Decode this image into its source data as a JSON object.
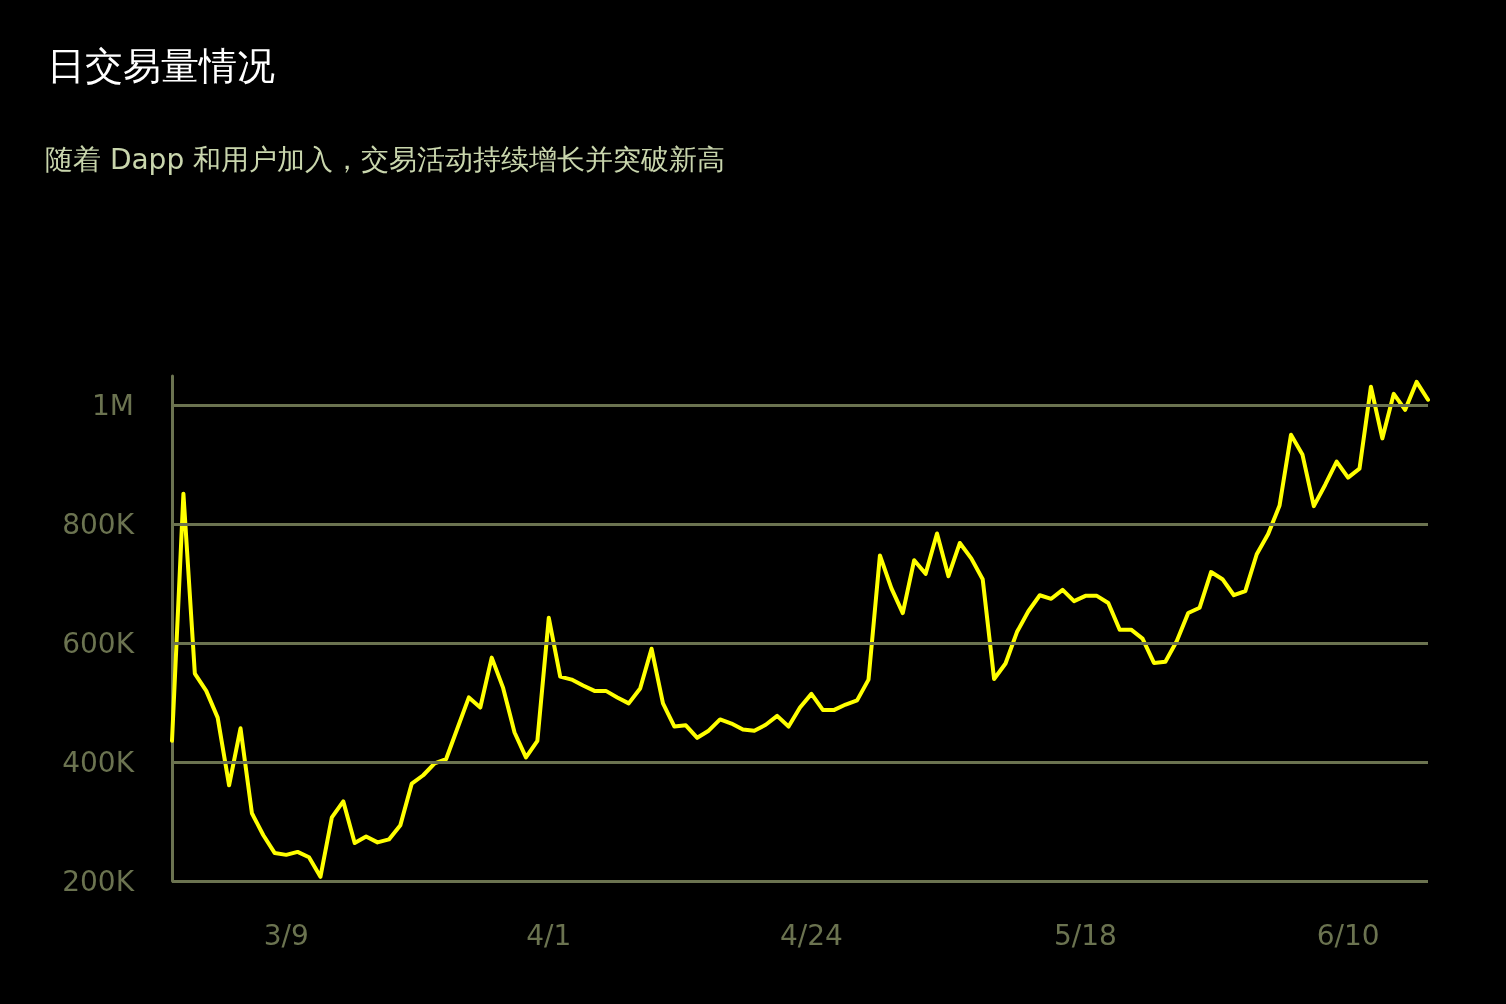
{
  "chart_data": {
    "type": "line",
    "title": "日交易量情况",
    "subtitle": "随着 Dapp 和用户加入，交易活动持续增长并突破新高",
    "x": [
      "--02-28",
      "--02-29",
      "--03-01",
      "--03-02",
      "--03-03",
      "--03-04",
      "--03-05",
      "--03-06",
      "--03-07",
      "--03-08",
      "--03-09",
      "--03-10",
      "--03-11",
      "--03-12",
      "--03-13",
      "--03-14",
      "--03-15",
      "--03-16",
      "--03-17",
      "--03-18",
      "--03-19",
      "--03-20",
      "--03-21",
      "--03-22",
      "--03-23",
      "--03-24",
      "--03-25",
      "--03-26",
      "--03-27",
      "--03-28",
      "--03-29",
      "--03-30",
      "--03-31",
      "--04-01",
      "--04-02",
      "--04-03",
      "--04-04",
      "--04-05",
      "--04-06",
      "--04-07",
      "--04-08",
      "--04-09",
      "--04-10",
      "--04-11",
      "--04-12",
      "--04-13",
      "--04-14",
      "--04-15",
      "--04-16",
      "--04-17",
      "--04-18",
      "--04-19",
      "--04-20",
      "--04-21",
      "--04-22",
      "--04-23",
      "--04-24",
      "--04-25",
      "--04-26",
      "--04-27",
      "--04-28",
      "--04-29",
      "--04-30",
      "--05-01",
      "--05-02",
      "--05-03",
      "--05-04",
      "--05-05",
      "--05-06",
      "--05-07",
      "--05-08",
      "--05-09",
      "--05-10",
      "--05-11",
      "--05-12",
      "--05-13",
      "--05-14",
      "--05-15",
      "--05-16",
      "--05-17",
      "--05-18",
      "--05-19",
      "--05-20",
      "--05-21",
      "--05-22",
      "--05-23",
      "--05-24",
      "--05-25",
      "--05-26",
      "--05-27",
      "--05-28",
      "--05-29",
      "--05-30",
      "--05-31",
      "--06-01",
      "--06-02",
      "--06-03",
      "--06-04",
      "--06-05",
      "--06-06",
      "--06-07",
      "--06-08",
      "--06-09",
      "--06-10",
      "--06-11",
      "--06-12",
      "--06-13",
      "--06-14",
      "--06-15",
      "--06-16",
      "--06-17"
    ],
    "series": [
      {
        "color": "#ffff00",
        "values": [
          436000,
          852000,
          549000,
          520000,
          475000,
          361000,
          457000,
          314000,
          277000,
          247000,
          244000,
          249000,
          240000,
          207000,
          307000,
          334000,
          264000,
          275000,
          265000,
          270000,
          294000,
          364000,
          378000,
          398000,
          405000,
          457000,
          509000,
          492000,
          576000,
          525000,
          450000,
          408000,
          436000,
          643000,
          544000,
          539000,
          529000,
          520000,
          520000,
          509000,
          499000,
          524000,
          591000,
          499000,
          460000,
          462000,
          441000,
          453000,
          472000,
          465000,
          455000,
          453000,
          463000,
          478000,
          460000,
          492000,
          515000,
          488000,
          488000,
          497000,
          504000,
          539000,
          748000,
          693000,
          651000,
          740000,
          717000,
          785000,
          713000,
          769000,
          743000,
          708000,
          540000,
          566000,
          619000,
          654000,
          681000,
          675000,
          690000,
          671000,
          680000,
          680000,
          668000,
          623000,
          623000,
          608000,
          567000,
          569000,
          604000,
          651000,
          660000,
          720000,
          708000,
          681000,
          688000,
          750000,
          784000,
          832000,
          951000,
          918000,
          831000,
          867000,
          906000,
          879000,
          894000,
          1032000,
          945000,
          1020000,
          993000,
          1040000,
          1010000
        ]
      }
    ],
    "xlim": [
      "--02-28",
      "--06-17"
    ],
    "xticks": [
      {
        "value": "--03-09",
        "label": "3/9"
      },
      {
        "value": "--04-01",
        "label": "4/1"
      },
      {
        "value": "--04-24",
        "label": "4/24"
      },
      {
        "value": "--05-18",
        "label": "5/18"
      },
      {
        "value": "--06-10",
        "label": "6/10"
      }
    ],
    "ylim": [
      200000,
      1050000
    ],
    "yticks": [
      {
        "value": 200000,
        "label": "200K"
      },
      {
        "value": 400000,
        "label": "400K"
      },
      {
        "value": 600000,
        "label": "600K"
      },
      {
        "value": 800000,
        "label": "800K"
      },
      {
        "value": 1000000,
        "label": "1M"
      }
    ],
    "grid": "y",
    "marker": "none",
    "line_style": "solid"
  }
}
